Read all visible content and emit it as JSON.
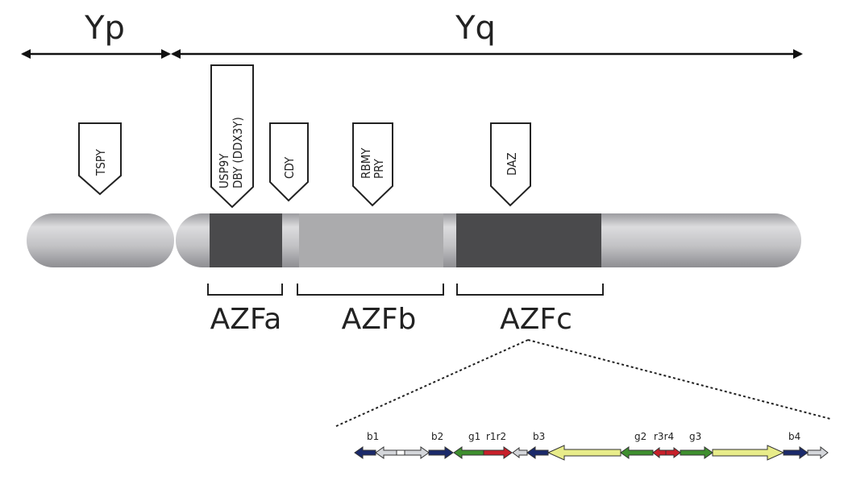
{
  "arms": {
    "short": "Yp",
    "long": "Yq"
  },
  "genes": [
    {
      "id": "tspy",
      "lines": [
        "TSPY"
      ]
    },
    {
      "id": "usp9y",
      "lines": [
        "USP9Y",
        "DBY (DDX3Y)"
      ]
    },
    {
      "id": "cdy",
      "lines": [
        "CDY"
      ]
    },
    {
      "id": "rbmy",
      "lines": [
        "RBMY",
        "PRY"
      ]
    },
    {
      "id": "daz",
      "lines": [
        "DAZ"
      ]
    }
  ],
  "regions": {
    "azfa": "AZFa",
    "azfb": "AZFb",
    "azfc": "AZFc"
  },
  "amplicons": {
    "b1": "b1",
    "b2": "b2",
    "g1": "g1",
    "r1r2": "r1r2",
    "b3": "b3",
    "g2": "g2",
    "r3r4": "r3r4",
    "g3": "g3",
    "b4": "b4"
  },
  "colors": {
    "chromosome_light": "#c4c4c6",
    "azf_dark": "#4a4a4c",
    "azfb_mid": "#a9a9ab",
    "blue": "#1b2a6b",
    "green": "#3f8f2f",
    "red": "#c8202a",
    "yellow": "#e8ec8a",
    "gray_arrow": "#d4d6da"
  }
}
